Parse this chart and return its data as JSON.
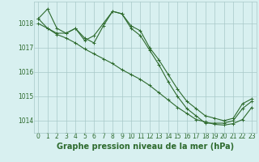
{
  "series": [
    {
      "x": [
        0,
        1,
        2,
        3,
        4,
        5,
        6,
        7,
        8,
        9,
        10,
        11,
        12,
        13,
        14,
        15,
        16,
        17,
        18,
        19,
        20,
        21,
        22,
        23
      ],
      "y": [
        1018.2,
        1018.6,
        1017.8,
        1017.6,
        1017.8,
        1017.3,
        1017.5,
        1018.0,
        1018.5,
        1018.4,
        1017.9,
        1017.7,
        1017.0,
        1016.5,
        1015.9,
        1015.3,
        1014.8,
        1014.5,
        1014.2,
        1014.1,
        1014.0,
        1014.1,
        1014.7,
        1014.9
      ]
    },
    {
      "x": [
        0,
        1,
        2,
        3,
        4,
        5,
        6,
        7,
        8,
        9,
        10,
        11,
        12,
        13,
        14,
        15,
        16,
        17,
        18,
        19,
        20,
        21,
        22,
        23
      ],
      "y": [
        1018.2,
        1017.8,
        1017.6,
        1017.6,
        1017.8,
        1017.4,
        1017.2,
        1017.9,
        1018.5,
        1018.4,
        1017.8,
        1017.5,
        1016.9,
        1016.3,
        1015.6,
        1015.0,
        1014.5,
        1014.2,
        1013.9,
        1013.9,
        1013.9,
        1014.0,
        1014.5,
        1014.8
      ]
    },
    {
      "x": [
        0,
        1,
        2,
        3,
        4,
        5,
        6,
        7,
        8,
        9,
        10,
        11,
        12,
        13,
        14,
        15,
        16,
        17,
        18,
        19,
        20,
        21,
        22,
        23
      ],
      "y": [
        1018.0,
        1017.8,
        1017.55,
        1017.4,
        1017.2,
        1016.95,
        1016.75,
        1016.55,
        1016.35,
        1016.1,
        1015.9,
        1015.7,
        1015.45,
        1015.15,
        1014.85,
        1014.55,
        1014.3,
        1014.05,
        1013.95,
        1013.85,
        1013.82,
        1013.88,
        1014.05,
        1014.55
      ]
    }
  ],
  "line_color": "#2d6a2d",
  "marker": "+",
  "markersize": 3,
  "linewidth": 0.8,
  "xlabel": "Graphe pression niveau de la mer (hPa)",
  "xlabel_fontsize": 7,
  "xlabel_bold": true,
  "xticks": [
    0,
    1,
    2,
    3,
    4,
    5,
    6,
    7,
    8,
    9,
    10,
    11,
    12,
    13,
    14,
    15,
    16,
    17,
    18,
    19,
    20,
    21,
    22,
    23
  ],
  "yticks": [
    1014,
    1015,
    1016,
    1017,
    1018
  ],
  "ylim": [
    1013.5,
    1018.9
  ],
  "xlim": [
    -0.5,
    23.5
  ],
  "tick_fontsize": 5.5,
  "background_color": "#d8f0f0",
  "grid_color": "#a8c8c8",
  "grid_alpha": 1.0
}
